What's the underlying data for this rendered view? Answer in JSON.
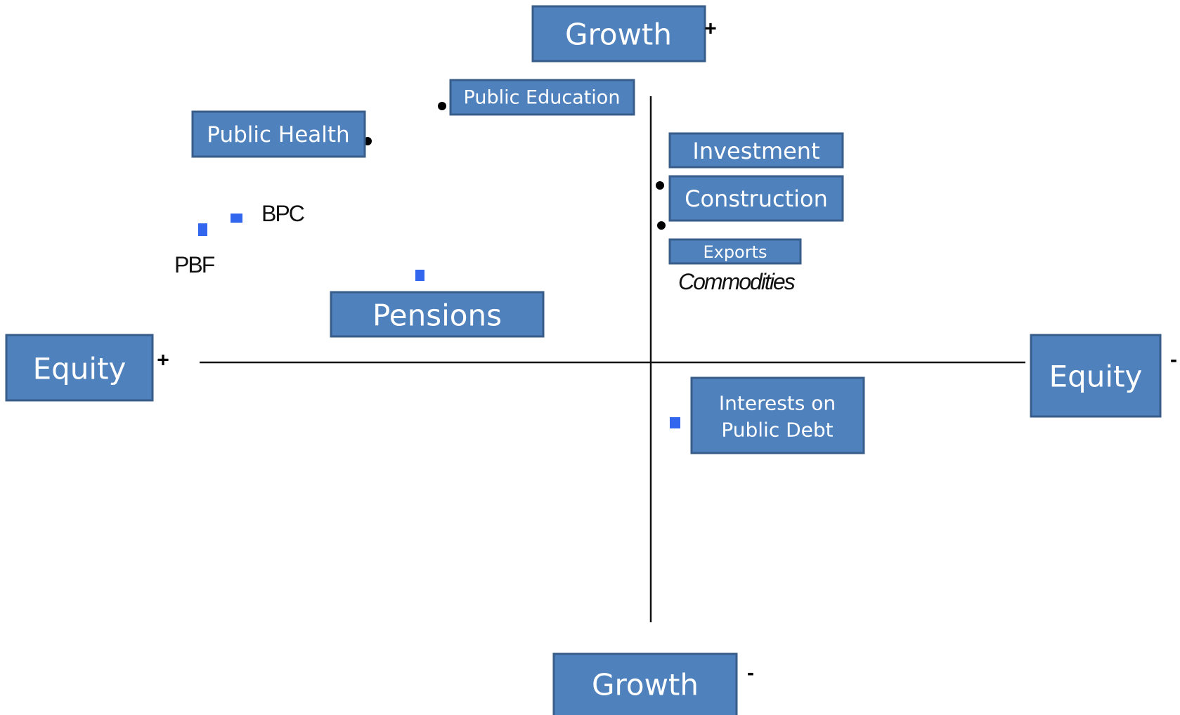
{
  "axes": {
    "top": {
      "label": "Growth",
      "sign": "+"
    },
    "bottom": {
      "label": "Growth",
      "sign": "-"
    },
    "left": {
      "label": "Equity",
      "sign": "+"
    },
    "right": {
      "label": "Equity",
      "sign": "-"
    }
  },
  "items": {
    "public_education": "Public Education",
    "public_health": "Public Health",
    "investment": "Investment",
    "construction": "Construction",
    "exports": "Exports",
    "commodities": "Commodities",
    "bpc": "BPC",
    "pbf": "PBF",
    "pensions": "Pensions",
    "public_debt": [
      "Interests on",
      "Public Debt"
    ]
  }
}
